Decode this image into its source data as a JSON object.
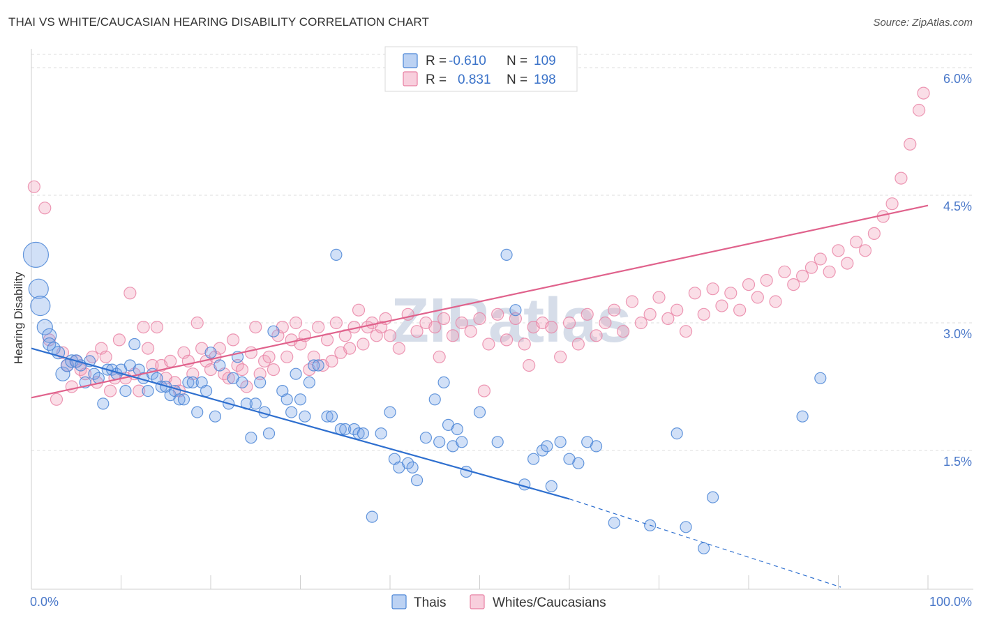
{
  "title": "THAI VS WHITE/CAUCASIAN HEARING DISABILITY CORRELATION CHART",
  "source": "Source: ZipAtlas.com",
  "watermark": "ZIPatlas",
  "colors": {
    "thai": "#7aa6e8",
    "thai_stroke": "#4a85d6",
    "thai_line": "#2e6fcf",
    "white": "#f2a0bb",
    "white_stroke": "#e87fa2",
    "white_line": "#e0628c",
    "accent_text": "#3b73c9"
  },
  "legend": {
    "rows": [
      {
        "r_label": "R =",
        "r_value": "-0.610",
        "n_label": "N =",
        "n_value": "109"
      },
      {
        "r_label": "R =",
        "r_value": "0.831",
        "n_label": "N =",
        "n_value": "198"
      }
    ]
  },
  "chart_data": {
    "type": "scatter",
    "title": "THAI VS WHITE/CAUCASIAN HEARING DISABILITY CORRELATION CHART",
    "xlabel": "",
    "ylabel": "Hearing Disability",
    "xlim": [
      0,
      100
    ],
    "ylim": [
      0,
      6.2
    ],
    "x_tick_labels": [
      "0.0%",
      "100.0%"
    ],
    "y_ticks": [
      1.5,
      3.0,
      4.5,
      6.0
    ],
    "y_tick_labels": [
      "1.5%",
      "3.0%",
      "4.5%",
      "6.0%"
    ],
    "grid": "horizontal dashed",
    "legend_position": "top-center",
    "series": [
      {
        "name": "Thais",
        "R": -0.61,
        "N": 109,
        "trend": {
          "x": [
            0,
            60
          ],
          "y": [
            2.7,
            0.93
          ]
        },
        "trend_dashed": {
          "x": [
            60,
            100
          ],
          "y": [
            0.93,
            -0.2
          ]
        },
        "points": [
          [
            0.5,
            3.8,
            18
          ],
          [
            0.8,
            3.4,
            14
          ],
          [
            1.0,
            3.2,
            14
          ],
          [
            1.5,
            2.95,
            11
          ],
          [
            2.0,
            2.85,
            10
          ],
          [
            2.0,
            2.75,
            9
          ],
          [
            2.5,
            2.7,
            9
          ],
          [
            3.0,
            2.65,
            9
          ],
          [
            3.5,
            2.4,
            10
          ],
          [
            4.0,
            2.5,
            9
          ],
          [
            4.5,
            2.55,
            9
          ],
          [
            5.0,
            2.55,
            9
          ],
          [
            5.5,
            2.5,
            8
          ],
          [
            6.0,
            2.3,
            8
          ],
          [
            6.5,
            2.55,
            8
          ],
          [
            7.0,
            2.4,
            8
          ],
          [
            7.5,
            2.35,
            8
          ],
          [
            8.0,
            2.05,
            8
          ],
          [
            8.5,
            2.45,
            8
          ],
          [
            9.0,
            2.45,
            8
          ],
          [
            9.5,
            2.4,
            8
          ],
          [
            10.0,
            2.45,
            8
          ],
          [
            10.5,
            2.2,
            8
          ],
          [
            11.0,
            2.5,
            8
          ],
          [
            11.5,
            2.75,
            8
          ],
          [
            12.0,
            2.45,
            8
          ],
          [
            12.5,
            2.35,
            8
          ],
          [
            13.0,
            2.2,
            8
          ],
          [
            13.5,
            2.4,
            8
          ],
          [
            14.0,
            2.35,
            8
          ],
          [
            14.5,
            2.25,
            8
          ],
          [
            15.0,
            2.25,
            8
          ],
          [
            15.5,
            2.15,
            8
          ],
          [
            16.0,
            2.2,
            8
          ],
          [
            16.5,
            2.1,
            8
          ],
          [
            17.0,
            2.1,
            8
          ],
          [
            17.5,
            2.3,
            8
          ],
          [
            18.0,
            2.3,
            8
          ],
          [
            18.5,
            1.95,
            8
          ],
          [
            19.0,
            2.3,
            8
          ],
          [
            19.5,
            2.2,
            8
          ],
          [
            20.0,
            2.65,
            8
          ],
          [
            20.5,
            1.9,
            8
          ],
          [
            21.0,
            2.5,
            8
          ],
          [
            22.0,
            2.05,
            8
          ],
          [
            22.5,
            2.35,
            8
          ],
          [
            23.0,
            2.6,
            8
          ],
          [
            23.5,
            2.3,
            8
          ],
          [
            24.0,
            2.05,
            8
          ],
          [
            24.5,
            1.65,
            8
          ],
          [
            25.0,
            2.05,
            8
          ],
          [
            25.5,
            2.3,
            8
          ],
          [
            26.0,
            1.95,
            8
          ],
          [
            26.5,
            1.7,
            8
          ],
          [
            27.0,
            2.9,
            8
          ],
          [
            28.0,
            2.2,
            8
          ],
          [
            28.5,
            2.1,
            8
          ],
          [
            29.0,
            1.95,
            8
          ],
          [
            29.5,
            2.4,
            8
          ],
          [
            30.0,
            2.1,
            8
          ],
          [
            30.5,
            1.9,
            8
          ],
          [
            31.0,
            2.3,
            8
          ],
          [
            31.5,
            2.5,
            8
          ],
          [
            32.0,
            2.5,
            8
          ],
          [
            33.0,
            1.9,
            8
          ],
          [
            33.5,
            1.9,
            8
          ],
          [
            34.0,
            3.8,
            8
          ],
          [
            34.5,
            1.75,
            8
          ],
          [
            35.0,
            1.75,
            8
          ],
          [
            36.0,
            1.75,
            8
          ],
          [
            36.5,
            1.7,
            8
          ],
          [
            37.0,
            1.7,
            8
          ],
          [
            38.0,
            0.72,
            8
          ],
          [
            39.0,
            1.7,
            8
          ],
          [
            40.0,
            1.95,
            8
          ],
          [
            40.5,
            1.4,
            8
          ],
          [
            41.0,
            1.3,
            8
          ],
          [
            42.0,
            1.35,
            8
          ],
          [
            42.5,
            1.3,
            8
          ],
          [
            43.0,
            1.15,
            8
          ],
          [
            44.0,
            1.65,
            8
          ],
          [
            45.0,
            2.1,
            8
          ],
          [
            45.5,
            1.6,
            8
          ],
          [
            46.0,
            2.3,
            8
          ],
          [
            46.5,
            1.8,
            8
          ],
          [
            47.0,
            1.55,
            8
          ],
          [
            47.5,
            1.75,
            8
          ],
          [
            48.0,
            1.6,
            8
          ],
          [
            48.5,
            1.25,
            8
          ],
          [
            50.0,
            1.95,
            8
          ],
          [
            52.0,
            1.6,
            8
          ],
          [
            53.0,
            3.8,
            8
          ],
          [
            54.0,
            3.15,
            8
          ],
          [
            55.0,
            1.1,
            8
          ],
          [
            56.0,
            1.4,
            8
          ],
          [
            57.0,
            1.5,
            8
          ],
          [
            57.5,
            1.55,
            8
          ],
          [
            58.0,
            1.08,
            8
          ],
          [
            59.0,
            1.6,
            8
          ],
          [
            60.0,
            1.4,
            8
          ],
          [
            61.0,
            1.35,
            8
          ],
          [
            62.0,
            1.6,
            8
          ],
          [
            63.0,
            1.55,
            8
          ],
          [
            65.0,
            0.65,
            8
          ],
          [
            69.0,
            0.62,
            8
          ],
          [
            72.0,
            1.7,
            8
          ],
          [
            73.0,
            0.6,
            8
          ],
          [
            75.0,
            0.35,
            8
          ],
          [
            76.0,
            0.95,
            8
          ],
          [
            88.0,
            2.35,
            8
          ],
          [
            86.0,
            1.9,
            8
          ]
        ]
      },
      {
        "name": "Whites/Caucasians",
        "R": 0.831,
        "N": 198,
        "trend": {
          "x": [
            0,
            100
          ],
          "y": [
            2.12,
            4.38
          ]
        },
        "points": [
          [
            0.3,
            4.6
          ],
          [
            1.5,
            4.35
          ],
          [
            2.0,
            2.8
          ],
          [
            2.8,
            2.1
          ],
          [
            3.5,
            2.65
          ],
          [
            4.0,
            2.5
          ],
          [
            4.5,
            2.25
          ],
          [
            5.0,
            2.55
          ],
          [
            5.5,
            2.45
          ],
          [
            6.0,
            2.4
          ],
          [
            6.8,
            2.6
          ],
          [
            7.3,
            2.3
          ],
          [
            7.8,
            2.7
          ],
          [
            8.3,
            2.6
          ],
          [
            8.8,
            2.2
          ],
          [
            9.3,
            2.35
          ],
          [
            9.8,
            2.8
          ],
          [
            10.5,
            2.35
          ],
          [
            11.0,
            3.35
          ],
          [
            11.5,
            2.4
          ],
          [
            12.0,
            2.2
          ],
          [
            12.5,
            2.95
          ],
          [
            13.0,
            2.7
          ],
          [
            13.5,
            2.5
          ],
          [
            14.0,
            2.95
          ],
          [
            14.5,
            2.5
          ],
          [
            15.0,
            2.35
          ],
          [
            15.5,
            2.55
          ],
          [
            16.0,
            2.3
          ],
          [
            16.5,
            2.2
          ],
          [
            17.0,
            2.65
          ],
          [
            17.5,
            2.55
          ],
          [
            18.0,
            2.4
          ],
          [
            18.5,
            3.0
          ],
          [
            19.0,
            2.7
          ],
          [
            19.5,
            2.55
          ],
          [
            20.0,
            2.45
          ],
          [
            20.5,
            2.6
          ],
          [
            21.0,
            2.7
          ],
          [
            21.5,
            2.4
          ],
          [
            22.0,
            2.35
          ],
          [
            22.5,
            2.8
          ],
          [
            23.0,
            2.5
          ],
          [
            23.5,
            2.45
          ],
          [
            24.0,
            2.25
          ],
          [
            24.5,
            2.65
          ],
          [
            25.0,
            2.95
          ],
          [
            25.5,
            2.4
          ],
          [
            26.0,
            2.55
          ],
          [
            26.5,
            2.6
          ],
          [
            27.0,
            2.45
          ],
          [
            27.5,
            2.85
          ],
          [
            28.0,
            2.95
          ],
          [
            28.5,
            2.6
          ],
          [
            29.0,
            2.8
          ],
          [
            29.5,
            3.0
          ],
          [
            30.0,
            2.75
          ],
          [
            30.5,
            2.85
          ],
          [
            31.0,
            2.45
          ],
          [
            31.5,
            2.6
          ],
          [
            32.0,
            2.95
          ],
          [
            32.5,
            2.5
          ],
          [
            33.0,
            2.8
          ],
          [
            33.5,
            2.55
          ],
          [
            34.0,
            3.0
          ],
          [
            34.5,
            2.65
          ],
          [
            35.0,
            2.85
          ],
          [
            35.5,
            2.7
          ],
          [
            36.0,
            2.95
          ],
          [
            36.5,
            3.15
          ],
          [
            37.0,
            2.75
          ],
          [
            37.5,
            2.95
          ],
          [
            38.0,
            3.0
          ],
          [
            38.5,
            2.85
          ],
          [
            39.0,
            2.95
          ],
          [
            39.5,
            3.05
          ],
          [
            40.0,
            2.85
          ],
          [
            41.0,
            2.7
          ],
          [
            42.0,
            3.1
          ],
          [
            43.0,
            2.9
          ],
          [
            44.0,
            3.0
          ],
          [
            45.0,
            2.95
          ],
          [
            46.0,
            3.05
          ],
          [
            47.0,
            2.85
          ],
          [
            48.0,
            3.0
          ],
          [
            49.0,
            2.9
          ],
          [
            50.0,
            3.05
          ],
          [
            51.0,
            2.75
          ],
          [
            52.0,
            3.1
          ],
          [
            53.0,
            2.8
          ],
          [
            54.0,
            3.05
          ],
          [
            55.0,
            2.75
          ],
          [
            56.0,
            2.95
          ],
          [
            57.0,
            3.0
          ],
          [
            58.0,
            2.95
          ],
          [
            59.0,
            2.6
          ],
          [
            60.0,
            3.0
          ],
          [
            61.0,
            2.75
          ],
          [
            62.0,
            3.1
          ],
          [
            63.0,
            2.85
          ],
          [
            64.0,
            3.0
          ],
          [
            65.0,
            3.15
          ],
          [
            66.0,
            2.9
          ],
          [
            67.0,
            3.25
          ],
          [
            68.0,
            3.0
          ],
          [
            69.0,
            3.1
          ],
          [
            70.0,
            3.3
          ],
          [
            71.0,
            3.05
          ],
          [
            72.0,
            3.15
          ],
          [
            73.0,
            2.9
          ],
          [
            74.0,
            3.35
          ],
          [
            75.0,
            3.1
          ],
          [
            76.0,
            3.4
          ],
          [
            77.0,
            3.2
          ],
          [
            78.0,
            3.35
          ],
          [
            79.0,
            3.15
          ],
          [
            80.0,
            3.45
          ],
          [
            81.0,
            3.3
          ],
          [
            82.0,
            3.5
          ],
          [
            83.0,
            3.25
          ],
          [
            84.0,
            3.6
          ],
          [
            85.0,
            3.45
          ],
          [
            86.0,
            3.55
          ],
          [
            87.0,
            3.65
          ],
          [
            88.0,
            3.75
          ],
          [
            89.0,
            3.6
          ],
          [
            90.0,
            3.85
          ],
          [
            91.0,
            3.7
          ],
          [
            92.0,
            3.95
          ],
          [
            93.0,
            3.85
          ],
          [
            94.0,
            4.05
          ],
          [
            95.0,
            4.25
          ],
          [
            96.0,
            4.4
          ],
          [
            97.0,
            4.7
          ],
          [
            98.0,
            5.1
          ],
          [
            99.0,
            5.5
          ],
          [
            99.5,
            5.7
          ],
          [
            50.5,
            2.2
          ],
          [
            45.5,
            2.6
          ],
          [
            55.5,
            2.5
          ]
        ]
      }
    ]
  }
}
